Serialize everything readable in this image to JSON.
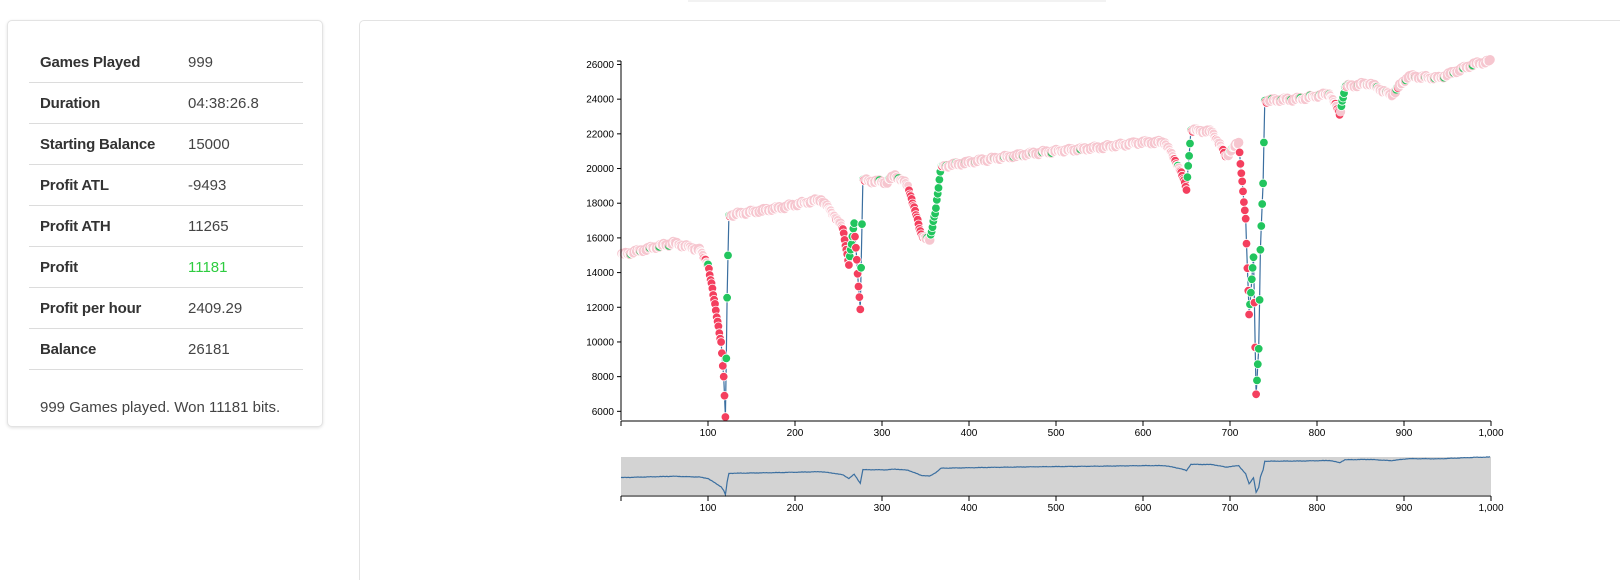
{
  "stats": {
    "rows": [
      {
        "label": "Games Played",
        "value": "999"
      },
      {
        "label": "Duration",
        "value": "04:38:26.8"
      },
      {
        "label": "Starting Balance",
        "value": "15000"
      },
      {
        "label": "Profit ATL",
        "value": "-9493"
      },
      {
        "label": "Profit ATH",
        "value": "11265"
      },
      {
        "label": "Profit",
        "value": "11181"
      },
      {
        "label": "Profit per hour",
        "value": "2409.29"
      },
      {
        "label": "Balance",
        "value": "26181"
      }
    ],
    "summary": "999 Games played. Won 11181 bits."
  },
  "colors": {
    "profit_positive": "#2ecc40",
    "win_point": "#22c55e",
    "loss_point": "#f43f5e",
    "line": "#3b6fa0",
    "brush_fill": "#d3d3d3"
  },
  "chart_data": {
    "type": "scatter",
    "xlabel": "",
    "ylabel": "",
    "xlim": [
      0,
      1000
    ],
    "ylim": [
      5500,
      26200
    ],
    "x_ticks": [
      "100",
      "200",
      "300",
      "400",
      "500",
      "600",
      "700",
      "800",
      "900",
      "1,000"
    ],
    "y_ticks": [
      "6000",
      "8000",
      "10000",
      "12000",
      "14000",
      "16000",
      "18000",
      "20000",
      "22000",
      "24000",
      "26000"
    ],
    "grid": false,
    "legend": "none",
    "series": [
      {
        "values_key": "balance",
        "point_colors": "green = win, red = loss (faded pink for older points)",
        "keypoints": [
          [
            0,
            15000
          ],
          [
            60,
            15700
          ],
          [
            90,
            15300
          ],
          [
            100,
            14500
          ],
          [
            105,
            13000
          ],
          [
            110,
            11500
          ],
          [
            115,
            10000
          ],
          [
            118,
            8000
          ],
          [
            120,
            5600
          ],
          [
            122,
            12500
          ],
          [
            124,
            17300
          ],
          [
            180,
            17700
          ],
          [
            230,
            18200
          ],
          [
            245,
            17300
          ],
          [
            255,
            16500
          ],
          [
            262,
            14500
          ],
          [
            268,
            16800
          ],
          [
            275,
            11900
          ],
          [
            278,
            19300
          ],
          [
            305,
            19200
          ],
          [
            315,
            19600
          ],
          [
            330,
            19000
          ],
          [
            345,
            16200
          ],
          [
            355,
            15800
          ],
          [
            362,
            17800
          ],
          [
            368,
            20100
          ],
          [
            420,
            20500
          ],
          [
            480,
            20900
          ],
          [
            550,
            21200
          ],
          [
            600,
            21500
          ],
          [
            625,
            21500
          ],
          [
            642,
            20000
          ],
          [
            650,
            18800
          ],
          [
            655,
            22200
          ],
          [
            680,
            22100
          ],
          [
            695,
            20700
          ],
          [
            710,
            21500
          ],
          [
            718,
            17000
          ],
          [
            722,
            11500
          ],
          [
            727,
            15000
          ],
          [
            730,
            7000
          ],
          [
            733,
            9500
          ],
          [
            735,
            15300
          ],
          [
            738,
            19200
          ],
          [
            740,
            23900
          ],
          [
            780,
            24000
          ],
          [
            815,
            24300
          ],
          [
            826,
            23100
          ],
          [
            832,
            24700
          ],
          [
            860,
            24900
          ],
          [
            885,
            24200
          ],
          [
            905,
            25300
          ],
          [
            940,
            25200
          ],
          [
            980,
            26000
          ],
          [
            1000,
            26181
          ]
        ]
      }
    ]
  }
}
